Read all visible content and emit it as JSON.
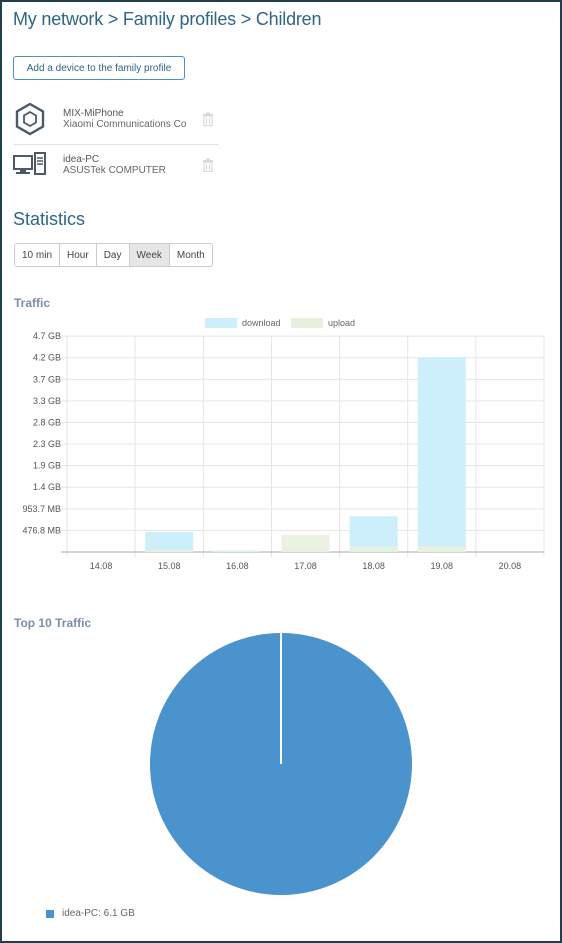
{
  "breadcrumb": "My network > Family profiles > Children",
  "add_device_button": "Add a device to the family profile",
  "devices": [
    {
      "name": "MIX-MiPhone",
      "vendor": "Xiaomi Communications Co",
      "icon": "phone-hexagon-icon"
    },
    {
      "name": "idea-PC",
      "vendor": "ASUSTek COMPUTER",
      "icon": "desktop-computer-icon"
    }
  ],
  "statistics": {
    "title": "Statistics",
    "tabs": [
      {
        "label": "10 min",
        "active": false
      },
      {
        "label": "Hour",
        "active": false
      },
      {
        "label": "Day",
        "active": false
      },
      {
        "label": "Week",
        "active": true
      },
      {
        "label": "Month",
        "active": false
      }
    ]
  },
  "traffic_title": "Traffic",
  "top10_title": "Top 10 Traffic",
  "colors": {
    "download": "#cdeefb",
    "upload": "#e7f0dd",
    "pie": "#4a93cc",
    "accent": "#2f6683"
  },
  "chart_data": [
    {
      "type": "bar",
      "title": "Traffic",
      "categories": [
        "14.08",
        "15.08",
        "16.08",
        "17.08",
        "18.08",
        "19.08",
        "20.08"
      ],
      "series": [
        {
          "name": "download",
          "values": [
            0,
            0.43,
            0.03,
            0.08,
            0.77,
            4.2,
            0
          ]
        },
        {
          "name": "upload",
          "values": [
            0,
            0.05,
            0.01,
            0.37,
            0.12,
            0.13,
            0
          ]
        }
      ],
      "unit": "GB",
      "ylim": [
        0,
        4.66
      ],
      "y_ticks": [
        {
          "value": 0.466,
          "label": "476.8 MB"
        },
        {
          "value": 0.931,
          "label": "953.7 MB"
        },
        {
          "value": 1.397,
          "label": "1.4 GB"
        },
        {
          "value": 1.863,
          "label": "1.9 GB"
        },
        {
          "value": 2.328,
          "label": "2.3 GB"
        },
        {
          "value": 2.794,
          "label": "2.8 GB"
        },
        {
          "value": 3.26,
          "label": "3.3 GB"
        },
        {
          "value": 3.725,
          "label": "3.7 GB"
        },
        {
          "value": 4.191,
          "label": "4.2 GB"
        },
        {
          "value": 4.657,
          "label": "4.7 GB"
        }
      ],
      "legend": [
        "download",
        "upload"
      ],
      "legend_position": "top",
      "grid": true
    },
    {
      "type": "pie",
      "title": "Top 10 Traffic",
      "slices": [
        {
          "label": "idea-PC: 6.1 GB",
          "value": 6.1
        }
      ],
      "legend_position": "bottom-left"
    }
  ]
}
